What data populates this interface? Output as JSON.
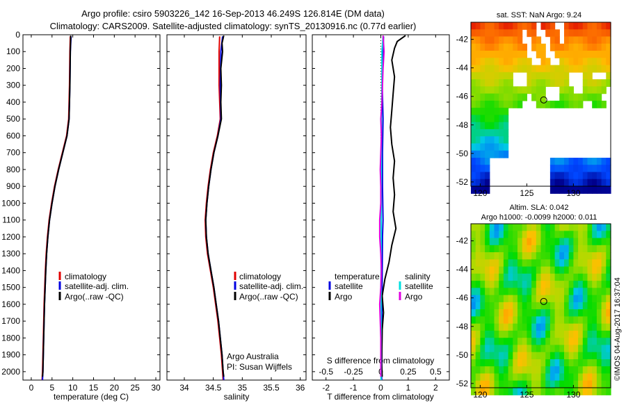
{
  "title_line1": "Argo profile: csiro 5903226_142 16-Sep-2013 46.249S 126.814E (DM data)",
  "title_line2": "Climatology: CARS2009. Satellite-adjusted climatology: synTS_20130916.nc (0.77d earlier)",
  "colors": {
    "climatology": "#e00000",
    "satellite": "#0000e0",
    "argo": "#000000",
    "sat_salinity": "#00e0e0",
    "argo_salinity": "#e000e0"
  },
  "chart_data": [
    {
      "type": "line",
      "name": "temperature",
      "xlabel": "temperature (deg C)",
      "xlim": [
        -2,
        31
      ],
      "xticks": [
        0,
        5,
        10,
        15,
        20,
        25,
        30
      ],
      "xtick_labels": [
        "0",
        "5",
        "10",
        "15",
        "20",
        "25",
        "30"
      ],
      "ylim": [
        0,
        2050
      ],
      "yticks": [
        0,
        100,
        200,
        300,
        400,
        500,
        600,
        700,
        800,
        900,
        1000,
        1100,
        1200,
        1300,
        1400,
        1500,
        1600,
        1700,
        1800,
        1900,
        2000
      ],
      "ytick_labels": [
        "0",
        "100",
        "200",
        "300",
        "400",
        "500",
        "600",
        "700",
        "800",
        "900",
        "1000",
        "1100",
        "1200",
        "1300",
        "1400",
        "1500",
        "1600",
        "1700",
        "1800",
        "1900",
        "2000"
      ],
      "legend": [
        "climatology",
        "satellite-adj. clim.",
        "Argo(..raw -QC)"
      ],
      "series": [
        {
          "name": "climatology",
          "color": "#e00000",
          "pressure": [
            10,
            100,
            300,
            500,
            600,
            700,
            800,
            900,
            1000,
            1100,
            1200,
            1300,
            1400,
            1600,
            1800,
            2000,
            2050
          ],
          "values": [
            9.4,
            9.3,
            9.2,
            9.0,
            8.5,
            7.5,
            6.5,
            5.6,
            4.9,
            4.3,
            3.9,
            3.6,
            3.4,
            3.1,
            2.9,
            2.7,
            2.6
          ]
        },
        {
          "name": "satellite-adj. clim.",
          "color": "#0000e0",
          "pressure": [
            10,
            100,
            300,
            500,
            600,
            700,
            800,
            900,
            1000,
            1100,
            1200,
            1300,
            1400,
            1600,
            1800,
            2000,
            2050
          ],
          "values": [
            9.6,
            9.4,
            9.3,
            9.1,
            8.6,
            7.6,
            6.6,
            5.7,
            5.0,
            4.4,
            4.0,
            3.7,
            3.5,
            3.2,
            3.0,
            2.8,
            2.7
          ]
        },
        {
          "name": "Argo(..raw -QC)",
          "color": "#000000",
          "pressure": [
            5,
            100,
            300,
            500,
            600,
            700,
            800,
            900,
            1000,
            1100,
            1200,
            1300,
            1400,
            1600,
            1800,
            2000,
            2030
          ],
          "values": [
            9.5,
            9.4,
            9.3,
            9.1,
            8.6,
            7.6,
            6.6,
            5.7,
            5.0,
            4.4,
            4.0,
            3.7,
            3.5,
            3.2,
            3.0,
            2.8,
            2.7
          ]
        }
      ]
    },
    {
      "type": "line",
      "name": "salinity",
      "xlabel": "salinity",
      "xlim": [
        33.7,
        36.1
      ],
      "xticks": [
        34,
        34.5,
        35,
        35.5,
        36
      ],
      "xtick_labels": [
        "34",
        "34.5",
        "35",
        "35.5",
        "36"
      ],
      "ylim": [
        0,
        2050
      ],
      "legend": [
        "climatology",
        "satellite-adj. clim.",
        "Argo(..raw -QC)"
      ],
      "annotation_line1": "Argo Australia",
      "annotation_line2": "PI: Susan Wijffels",
      "series": [
        {
          "name": "climatology",
          "color": "#e00000",
          "pressure": [
            10,
            100,
            300,
            500,
            600,
            700,
            800,
            900,
            1000,
            1100,
            1200,
            1300,
            1400,
            1500,
            1600,
            1700,
            1800,
            1900,
            2000,
            2050
          ],
          "values": [
            34.61,
            34.6,
            34.6,
            34.62,
            34.57,
            34.5,
            34.45,
            34.41,
            34.38,
            34.36,
            34.37,
            34.4,
            34.45,
            34.5,
            34.54,
            34.58,
            34.61,
            34.64,
            34.66,
            34.67
          ]
        },
        {
          "name": "satellite-adj. clim.",
          "color": "#0000e0",
          "pressure": [
            10,
            100,
            300,
            500,
            600,
            700,
            800,
            900,
            1000,
            1100,
            1200,
            1300,
            1400,
            1500,
            1600,
            1700,
            1800,
            1900,
            2000,
            2050
          ],
          "values": [
            34.66,
            34.63,
            34.62,
            34.63,
            34.58,
            34.51,
            34.46,
            34.42,
            34.39,
            34.37,
            34.38,
            34.41,
            34.46,
            34.51,
            34.55,
            34.59,
            34.62,
            34.65,
            34.67,
            34.68
          ]
        },
        {
          "name": "Argo(..raw -QC)",
          "color": "#000000",
          "pressure": [
            5,
            50,
            100,
            200,
            300,
            400,
            500,
            600,
            700,
            800,
            900,
            1000,
            1100,
            1200,
            1300,
            1400,
            1500,
            1600,
            1700,
            1800,
            1900,
            2000,
            2030
          ],
          "values": [
            34.68,
            34.65,
            34.66,
            34.63,
            34.64,
            34.63,
            34.64,
            34.58,
            34.51,
            34.46,
            34.42,
            34.39,
            34.37,
            34.38,
            34.41,
            34.46,
            34.51,
            34.55,
            34.59,
            34.62,
            34.65,
            34.67,
            34.68
          ]
        }
      ]
    },
    {
      "type": "line",
      "name": "differences",
      "xlabel": "T difference from climatology",
      "xlim": [
        -2.5,
        2.5
      ],
      "xticks": [
        -2,
        -1,
        0,
        1,
        2
      ],
      "xtick_labels": [
        "-2",
        "-1",
        "0",
        "1",
        "2"
      ],
      "ylim": [
        0,
        2050
      ],
      "top_axis_label": "S difference from climatology",
      "top_ticks": [
        -0.5,
        -0.25,
        0,
        0.25,
        0.5
      ],
      "top_tick_labels": [
        "-0.5",
        "-0.25",
        "0",
        "0.25",
        "0.5"
      ],
      "legend_temperature_title": "temperature",
      "legend_salinity_title": "salinity",
      "legend_labels": [
        "satellite",
        "Argo",
        "satellite",
        "Argo"
      ],
      "series": [
        {
          "name": "T satellite",
          "color": "#0000e0",
          "pressure": [
            10,
            100,
            300,
            500,
            700,
            900,
            1100,
            1200,
            1400,
            1600,
            1800,
            2000,
            2050
          ],
          "values": [
            0.1,
            0.08,
            0.05,
            0.08,
            0.06,
            0.06,
            0.08,
            0.06,
            0.05,
            0.04,
            0.04,
            0.03,
            0.03
          ]
        },
        {
          "name": "T Argo",
          "color": "#000000",
          "pressure": [
            5,
            40,
            80,
            150,
            250,
            350,
            450,
            550,
            650,
            750,
            850,
            950,
            1050,
            1150,
            1250,
            1350,
            1450,
            1550,
            1650,
            1750,
            1850,
            1950,
            2030
          ],
          "values": [
            0.9,
            0.6,
            0.5,
            0.4,
            0.5,
            0.45,
            0.4,
            0.35,
            0.4,
            0.5,
            0.45,
            0.5,
            0.45,
            0.55,
            0.4,
            0.3,
            0.15,
            0.05,
            0.1,
            0.05,
            0.04,
            0.03,
            0.05
          ]
        },
        {
          "name": "S satellite",
          "color": "#00e0e0",
          "pressure": [
            10,
            100,
            300,
            500,
            700,
            900,
            1100,
            1300,
            1500,
            1700,
            1900,
            2050
          ],
          "values": [
            0.02,
            0.01,
            0.01,
            0.005,
            0.005,
            0.004,
            0.003,
            0.003,
            0.002,
            0.002,
            0.002,
            0.002
          ]
        },
        {
          "name": "S Argo",
          "color": "#e000e0",
          "pressure": [
            5,
            100,
            200,
            300,
            400,
            500,
            600,
            700,
            800,
            900,
            1000,
            1100,
            1200,
            1300,
            1400,
            1500,
            1600,
            1700,
            1800,
            1900,
            2030
          ],
          "values": [
            0.02,
            0.03,
            0.02,
            0.015,
            0.01,
            0.0,
            0.005,
            0.0,
            -0.005,
            0.0,
            0.0,
            -0.01,
            -0.01,
            0.0,
            0.005,
            0.0,
            -0.01,
            -0.005,
            0.0,
            0.0,
            0.0
          ]
        }
      ]
    },
    {
      "type": "heatmap",
      "name": "sst_map",
      "title": "sat. SST: NaN Argo: 9.24",
      "xlim": [
        119,
        134
      ],
      "ylim": [
        -52.3,
        -40.8
      ],
      "xticks": [
        120,
        125,
        130
      ],
      "xtick_labels": [
        "120",
        "125",
        "130"
      ],
      "yticks": [
        -42,
        -44,
        -46,
        -48,
        -50,
        -52
      ],
      "ytick_labels": [
        "-42",
        "-44",
        "-46",
        "-48",
        "-50",
        "-52"
      ],
      "marker": {
        "lon": 126.814,
        "lat": -46.249
      }
    },
    {
      "type": "heatmap",
      "name": "sla_map",
      "title_line1": "Altim. SLA: 0.042",
      "title_line2": "Argo h1000: -0.0099 h2000: 0.011",
      "xlim": [
        119,
        134
      ],
      "ylim": [
        -52.3,
        -40.8
      ],
      "xticks": [
        120,
        125,
        130
      ],
      "xtick_labels": [
        "120",
        "125",
        "130"
      ],
      "yticks": [
        -42,
        -44,
        -46,
        -48,
        -50,
        -52
      ],
      "ytick_labels": [
        "-42",
        "-44",
        "-46",
        "-48",
        "-50",
        "-52"
      ],
      "marker": {
        "lon": 126.814,
        "lat": -46.249
      }
    }
  ],
  "imos_stamp": "©IMOS 04-Aug-2017 16:37:04"
}
